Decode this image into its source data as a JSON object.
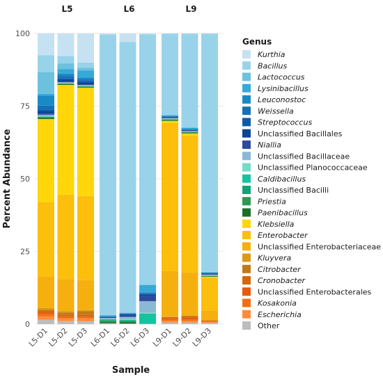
{
  "chart_data": {
    "type": "bar",
    "stacked": true,
    "xlabel": "Sample",
    "ylabel": "Percent Abundance",
    "ylim": [
      0,
      100
    ],
    "yticks": [
      0,
      25,
      50,
      75,
      100
    ],
    "grid": true,
    "legend_position": "right",
    "legend_title": "Genus",
    "facets": [
      {
        "label": "L5",
        "samples": [
          "L5-D1",
          "L5-D2",
          "L5-D3"
        ]
      },
      {
        "label": "L6",
        "samples": [
          "L6-D1",
          "L6-D2",
          "L6-D3"
        ]
      },
      {
        "label": "L9",
        "samples": [
          "L9-D1",
          "L9-D2",
          "L9-D3"
        ]
      }
    ],
    "series": [
      {
        "name": "Other",
        "italic": false,
        "color": "#bdbdbd",
        "values": {
          "L5-D1": 1.5,
          "L5-D2": 1.0,
          "L5-D3": 1.0,
          "L6-D1": 0.3,
          "L6-D2": 0.2,
          "L6-D3": 0.1,
          "L9-D1": 0.6,
          "L9-D2": 0.6,
          "L9-D3": 0.4
        }
      },
      {
        "name": "Escherichia",
        "italic": true,
        "color": "#fd8d3c",
        "values": {
          "L5-D1": 1.3,
          "L5-D2": 1.0,
          "L5-D3": 1.0,
          "L6-D1": 0.0,
          "L6-D2": 0.0,
          "L6-D3": 0.0,
          "L9-D1": 0.6,
          "L9-D2": 0.6,
          "L9-D3": 0.3
        }
      },
      {
        "name": "Kosakonia",
        "italic": true,
        "color": "#f46d0f",
        "values": {
          "L5-D1": 0.8,
          "L5-D2": 0.5,
          "L5-D3": 0.5,
          "L6-D1": 0.0,
          "L6-D2": 0.0,
          "L6-D3": 0.0,
          "L9-D1": 0.4,
          "L9-D2": 0.4,
          "L9-D3": 0.2
        }
      },
      {
        "name": "Unclassified Enterobacterales",
        "italic": false,
        "color": "#e8590c",
        "values": {
          "L5-D1": 0.4,
          "L5-D2": 0.3,
          "L5-D3": 0.3,
          "L6-D1": 0.0,
          "L6-D2": 0.0,
          "L6-D3": 0.0,
          "L9-D1": 0.4,
          "L9-D2": 0.6,
          "L9-D3": 0.2
        }
      },
      {
        "name": "Cronobacter",
        "italic": true,
        "color": "#d4660c",
        "values": {
          "L5-D1": 0.5,
          "L5-D2": 0.4,
          "L5-D3": 0.4,
          "L6-D1": 0.0,
          "L6-D2": 0.0,
          "L6-D3": 0.0,
          "L9-D1": 0.3,
          "L9-D2": 0.5,
          "L9-D3": 0.1
        }
      },
      {
        "name": "Citrobacter",
        "italic": true,
        "color": "#c07a1a",
        "values": {
          "L5-D1": 0.5,
          "L5-D2": 0.8,
          "L5-D3": 1.3,
          "L6-D1": 0.0,
          "L6-D2": 0.0,
          "L6-D3": 0.0,
          "L9-D1": 0.2,
          "L9-D2": 0.2,
          "L9-D3": 0.1
        }
      },
      {
        "name": "Kluyvera",
        "italic": true,
        "color": "#d99a14",
        "values": {
          "L5-D1": 0.6,
          "L5-D2": 0.5,
          "L5-D3": 0.4,
          "L6-D1": 0.0,
          "L6-D2": 0.0,
          "L6-D3": 0.0,
          "L9-D1": 0.1,
          "L9-D2": 0.1,
          "L9-D3": 0.0
        }
      },
      {
        "name": "Unclassified Enterobacteriaceae",
        "italic": false,
        "color": "#f5b00f",
        "values": {
          "L5-D1": 11.0,
          "L5-D2": 11.0,
          "L5-D3": 10.5,
          "L6-D1": 0.0,
          "L6-D2": 0.0,
          "L6-D3": 0.0,
          "L9-D1": 15.8,
          "L9-D2": 14.9,
          "L9-D3": 3.4
        }
      },
      {
        "name": "Enterobacter",
        "italic": true,
        "color": "#fbbf0c",
        "values": {
          "L5-D1": 26.0,
          "L5-D2": 29.0,
          "L5-D3": 29.5,
          "L6-D1": 0.0,
          "L6-D2": 0.0,
          "L6-D3": 0.0,
          "L9-D1": 51.5,
          "L9-D2": 47.3,
          "L9-D3": 11.3
        }
      },
      {
        "name": "Klebsiella",
        "italic": true,
        "color": "#ffd60a",
        "values": {
          "L5-D1": 29.0,
          "L5-D2": 37.7,
          "L5-D3": 38.0,
          "L6-D1": 0.0,
          "L6-D2": 0.0,
          "L6-D3": 0.0,
          "L9-D1": 0.8,
          "L9-D2": 0.8,
          "L9-D3": 0.3
        }
      },
      {
        "name": "Paenibacillus",
        "italic": true,
        "color": "#1b6f2a",
        "values": {
          "L5-D1": 0.4,
          "L5-D2": 0.3,
          "L5-D3": 0.3,
          "L6-D1": 0.4,
          "L6-D2": 0.5,
          "L6-D3": 0.0,
          "L9-D1": 0.3,
          "L9-D2": 0.3,
          "L9-D3": 0.2
        }
      },
      {
        "name": "Priestia",
        "italic": true,
        "color": "#2a9b4f",
        "values": {
          "L5-D1": 0.2,
          "L5-D2": 0.1,
          "L5-D3": 0.1,
          "L6-D1": 0.4,
          "L6-D2": 0.3,
          "L6-D3": 0.0,
          "L9-D1": 0.1,
          "L9-D2": 0.1,
          "L9-D3": 0.1
        }
      },
      {
        "name": "Unclassified Bacilli",
        "italic": false,
        "color": "#10a37a",
        "values": {
          "L5-D1": 0.2,
          "L5-D2": 0.1,
          "L5-D3": 0.1,
          "L6-D1": 0.3,
          "L6-D2": 0.3,
          "L6-D3": 0.0,
          "L9-D1": 0.1,
          "L9-D2": 0.1,
          "L9-D3": 0.1
        }
      },
      {
        "name": "Caldibacillus",
        "italic": true,
        "color": "#14c4a0",
        "values": {
          "L5-D1": 0.1,
          "L5-D2": 0.0,
          "L5-D3": 0.0,
          "L6-D1": 0.3,
          "L6-D2": 0.2,
          "L6-D3": 3.5,
          "L9-D1": 0.1,
          "L9-D2": 0.0,
          "L9-D3": 0.0
        }
      },
      {
        "name": "Unclassified Planococcaceae",
        "italic": false,
        "color": "#74dcc8",
        "values": {
          "L5-D1": 0.1,
          "L5-D2": 0.1,
          "L5-D3": 0.1,
          "L6-D1": 0.1,
          "L6-D2": 0.2,
          "L6-D3": 0.3,
          "L9-D1": 0.1,
          "L9-D2": 0.1,
          "L9-D3": 0.1
        }
      },
      {
        "name": "Unclassified Bacillaceae",
        "italic": false,
        "color": "#8ab9d4",
        "values": {
          "L5-D1": 0.5,
          "L5-D2": 0.3,
          "L5-D3": 0.3,
          "L6-D1": 0.3,
          "L6-D2": 0.8,
          "L6-D3": 4.0,
          "L9-D1": 0.2,
          "L9-D2": 0.2,
          "L9-D3": 0.2
        }
      },
      {
        "name": "Niallia",
        "italic": true,
        "color": "#2e4a9c",
        "values": {
          "L5-D1": 0.4,
          "L5-D2": 0.3,
          "L5-D3": 0.3,
          "L6-D1": 0.2,
          "L6-D2": 0.5,
          "L6-D3": 1.8,
          "L9-D1": 0.2,
          "L9-D2": 0.2,
          "L9-D3": 0.2
        }
      },
      {
        "name": "Unclassified Bacillales",
        "italic": false,
        "color": "#0b4596",
        "values": {
          "L5-D1": 0.8,
          "L5-D2": 0.6,
          "L5-D3": 0.6,
          "L6-D1": 0.2,
          "L6-D2": 0.4,
          "L6-D3": 0.5,
          "L9-D1": 0.2,
          "L9-D2": 0.2,
          "L9-D3": 0.2
        }
      },
      {
        "name": "Streptococcus",
        "italic": true,
        "color": "#0d5ba8",
        "values": {
          "L5-D1": 0.5,
          "L5-D2": 0.4,
          "L5-D3": 0.4,
          "L6-D1": 0.1,
          "L6-D2": 0.1,
          "L6-D3": 0.3,
          "L9-D1": 0.1,
          "L9-D2": 0.1,
          "L9-D3": 0.1
        }
      },
      {
        "name": "Weissella",
        "italic": true,
        "color": "#1670b5",
        "values": {
          "L5-D1": 1.5,
          "L5-D2": 0.9,
          "L5-D3": 0.7,
          "L6-D1": 0.1,
          "L6-D2": 0.1,
          "L6-D3": 0.2,
          "L9-D1": 0.2,
          "L9-D2": 0.2,
          "L9-D3": 0.2
        }
      },
      {
        "name": "Leuconostoc",
        "italic": true,
        "color": "#1a8ac6",
        "values": {
          "L5-D1": 3.5,
          "L5-D2": 0.8,
          "L5-D3": 0.6,
          "L6-D1": 0.1,
          "L6-D2": 0.1,
          "L6-D3": 0.2,
          "L9-D1": 0.1,
          "L9-D2": 0.1,
          "L9-D3": 0.1
        }
      },
      {
        "name": "Lysinibacillus",
        "italic": true,
        "color": "#36a9d8",
        "values": {
          "L5-D1": 0.6,
          "L5-D2": 1.5,
          "L5-D3": 2.5,
          "L6-D1": 0.2,
          "L6-D2": 0.2,
          "L6-D3": 2.5,
          "L9-D1": 0.2,
          "L9-D2": 0.3,
          "L9-D3": 0.1
        }
      },
      {
        "name": "Lactococcus",
        "italic": true,
        "color": "#6cc1dd",
        "values": {
          "L5-D1": 7.5,
          "L5-D2": 2.0,
          "L5-D3": 1.0,
          "L6-D1": 0.1,
          "L6-D2": 0.1,
          "L6-D3": 0.2,
          "L9-D1": 0.2,
          "L9-D2": 0.2,
          "L9-D3": 0.1
        }
      },
      {
        "name": "Bacillus",
        "italic": true,
        "color": "#99d3ea",
        "values": {
          "L5-D1": 6.0,
          "L5-D2": 2.5,
          "L5-D3": 1.8,
          "L6-D1": 96.5,
          "L6-D2": 93.0,
          "L6-D3": 86.0,
          "L9-D1": 28.2,
          "L9-D2": 32.4,
          "L9-D3": 82.0
        }
      },
      {
        "name": "Kurthia",
        "italic": true,
        "color": "#c6e1f2",
        "values": {
          "L5-D1": 7.6,
          "L5-D2": 7.8,
          "L5-D3": 10.2,
          "L6-D1": 0.4,
          "L6-D2": 3.0,
          "L6-D3": 0.3,
          "L9-D1": 0.1,
          "L9-D2": 0.1,
          "L9-D3": 0.1
        }
      }
    ]
  }
}
